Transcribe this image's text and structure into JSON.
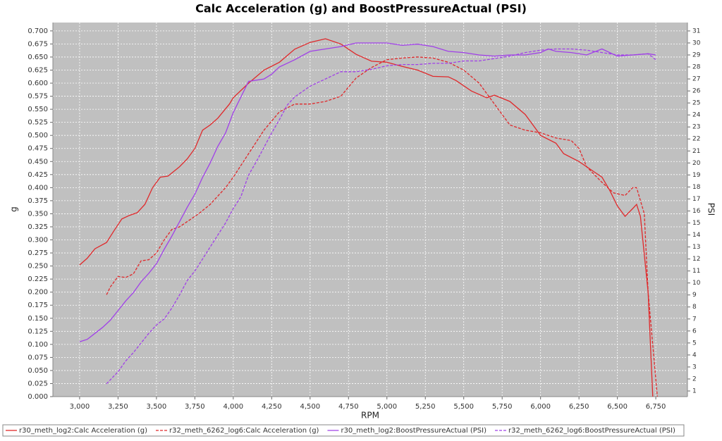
{
  "chart_data": {
    "type": "line",
    "title": "Calc Acceleration (g) and BoostPressureActual (PSI)",
    "x_label": "RPM",
    "y_label": "g",
    "y2_label": "PSI",
    "xlim": [
      2826,
      6956
    ],
    "ylim": [
      0,
      0.716
    ],
    "y2lim": [
      0.53,
      31.7
    ],
    "grid": true,
    "legend": "bottom",
    "xticks": [
      {
        "value": 3000,
        "label": "3,000"
      },
      {
        "value": 3250,
        "label": "3,250"
      },
      {
        "value": 3500,
        "label": "3,500"
      },
      {
        "value": 3750,
        "label": "3,750"
      },
      {
        "value": 4000,
        "label": "4,000"
      },
      {
        "value": 4250,
        "label": "4,250"
      },
      {
        "value": 4500,
        "label": "4,500"
      },
      {
        "value": 4750,
        "label": "4,750"
      },
      {
        "value": 5000,
        "label": "5,000"
      },
      {
        "value": 5250,
        "label": "5,250"
      },
      {
        "value": 5500,
        "label": "5,500"
      },
      {
        "value": 5750,
        "label": "5,750"
      },
      {
        "value": 6000,
        "label": "6,000"
      },
      {
        "value": 6250,
        "label": "6,250"
      },
      {
        "value": 6500,
        "label": "6,500"
      },
      {
        "value": 6750,
        "label": "6,750"
      }
    ],
    "yticks": [
      {
        "value": 0,
        "label": "0.000"
      },
      {
        "value": 0.025,
        "label": "0.025"
      },
      {
        "value": 0.05,
        "label": "0.050"
      },
      {
        "value": 0.075,
        "label": "0.075"
      },
      {
        "value": 0.1,
        "label": "0.100"
      },
      {
        "value": 0.125,
        "label": "0.125"
      },
      {
        "value": 0.15,
        "label": "0.150"
      },
      {
        "value": 0.175,
        "label": "0.175"
      },
      {
        "value": 0.2,
        "label": "0.200"
      },
      {
        "value": 0.225,
        "label": "0.225"
      },
      {
        "value": 0.25,
        "label": "0.250"
      },
      {
        "value": 0.275,
        "label": "0.275"
      },
      {
        "value": 0.3,
        "label": "0.300"
      },
      {
        "value": 0.325,
        "label": "0.325"
      },
      {
        "value": 0.35,
        "label": "0.350"
      },
      {
        "value": 0.375,
        "label": "0.375"
      },
      {
        "value": 0.4,
        "label": "0.400"
      },
      {
        "value": 0.425,
        "label": "0.425"
      },
      {
        "value": 0.45,
        "label": "0.450"
      },
      {
        "value": 0.475,
        "label": "0.475"
      },
      {
        "value": 0.5,
        "label": "0.500"
      },
      {
        "value": 0.525,
        "label": "0.525"
      },
      {
        "value": 0.55,
        "label": "0.550"
      },
      {
        "value": 0.575,
        "label": "0.575"
      },
      {
        "value": 0.6,
        "label": "0.600"
      },
      {
        "value": 0.625,
        "label": "0.625"
      },
      {
        "value": 0.65,
        "label": "0.650"
      },
      {
        "value": 0.675,
        "label": "0.675"
      },
      {
        "value": 0.7,
        "label": "0.700"
      }
    ],
    "y2ticks": [
      1,
      2,
      3,
      4,
      5,
      6,
      7,
      8,
      9,
      10,
      11,
      12,
      13,
      14,
      15,
      16,
      17,
      18,
      19,
      20,
      21,
      22,
      23,
      24,
      25,
      26,
      27,
      28,
      29,
      30,
      31
    ],
    "series": [
      {
        "name": "r30_meth_log2:Calc Acceleration (g)",
        "color": "#e0282a",
        "dashed": false,
        "x": [
          3000,
          3050,
          3100,
          3175,
          3225,
          3275,
          3325,
          3375,
          3425,
          3475,
          3525,
          3575,
          3650,
          3700,
          3750,
          3800,
          3850,
          3900,
          3975,
          4000,
          4100,
          4200,
          4300,
          4400,
          4500,
          4600,
          4700,
          4800,
          4900,
          5000,
          5100,
          5200,
          5300,
          5400,
          5450,
          5550,
          5650,
          5700,
          5800,
          5900,
          6000,
          6100,
          6150,
          6250,
          6350,
          6400,
          6450,
          6500,
          6550,
          6600,
          6625,
          6650,
          6700,
          6730
        ],
        "values": [
          0.252,
          0.265,
          0.283,
          0.295,
          0.318,
          0.34,
          0.347,
          0.352,
          0.368,
          0.4,
          0.42,
          0.422,
          0.44,
          0.455,
          0.475,
          0.51,
          0.52,
          0.533,
          0.56,
          0.572,
          0.6,
          0.625,
          0.64,
          0.665,
          0.678,
          0.685,
          0.675,
          0.655,
          0.642,
          0.64,
          0.632,
          0.625,
          0.613,
          0.612,
          0.605,
          0.585,
          0.572,
          0.577,
          0.565,
          0.54,
          0.5,
          0.485,
          0.465,
          0.45,
          0.43,
          0.42,
          0.395,
          0.365,
          0.345,
          0.36,
          0.368,
          0.345,
          0.2,
          0
        ]
      },
      {
        "name": "r32_meth_6262_log6:Calc Acceleration (g)",
        "color": "#e0282a",
        "dashed": true,
        "x": [
          3175,
          3200,
          3250,
          3300,
          3350,
          3400,
          3450,
          3500,
          3550,
          3600,
          3650,
          3700,
          3775,
          3850,
          3950,
          4000,
          4100,
          4200,
          4300,
          4400,
          4500,
          4600,
          4700,
          4800,
          4900,
          5000,
          5100,
          5200,
          5300,
          5400,
          5500,
          5600,
          5700,
          5800,
          5900,
          6000,
          6100,
          6200,
          6250,
          6300,
          6400,
          6475,
          6550,
          6600,
          6625,
          6675,
          6700,
          6760
        ],
        "values": [
          0.195,
          0.21,
          0.23,
          0.228,
          0.235,
          0.26,
          0.262,
          0.275,
          0.3,
          0.32,
          0.325,
          0.335,
          0.35,
          0.368,
          0.4,
          0.42,
          0.465,
          0.51,
          0.545,
          0.56,
          0.56,
          0.565,
          0.575,
          0.61,
          0.63,
          0.645,
          0.648,
          0.65,
          0.648,
          0.64,
          0.625,
          0.6,
          0.56,
          0.52,
          0.51,
          0.505,
          0.495,
          0.49,
          0.475,
          0.44,
          0.41,
          0.39,
          0.385,
          0.4,
          0.4,
          0.35,
          0.2,
          0
        ]
      },
      {
        "name": "r30_meth_log2:BoostPressureActual (PSI)",
        "color": "#a040e8",
        "dashed": false,
        "axis": "y2",
        "x": [
          3000,
          3050,
          3100,
          3150,
          3200,
          3250,
          3300,
          3350,
          3400,
          3450,
          3500,
          3550,
          3600,
          3650,
          3700,
          3750,
          3800,
          3850,
          3900,
          3950,
          4000,
          4050,
          4100,
          4200,
          4250,
          4300,
          4400,
          4500,
          4600,
          4700,
          4800,
          4900,
          5000,
          5100,
          5200,
          5300,
          5400,
          5500,
          5600,
          5700,
          5800,
          5900,
          6000,
          6050,
          6100,
          6200,
          6300,
          6400,
          6500,
          6600,
          6700,
          6750
        ],
        "values": [
          5.1,
          5.3,
          5.8,
          6.3,
          6.9,
          7.7,
          8.5,
          9.2,
          10.1,
          10.8,
          11.6,
          12.8,
          13.9,
          15.1,
          16.3,
          17.4,
          18.8,
          20,
          21.4,
          22.5,
          24.2,
          25.5,
          26.8,
          27,
          27.4,
          28,
          28.6,
          29.3,
          29.5,
          29.7,
          30,
          30,
          30,
          29.8,
          29.9,
          29.7,
          29.3,
          29.2,
          29,
          28.9,
          29,
          29,
          29.2,
          29.5,
          29.3,
          29.2,
          29,
          29.5,
          28.9,
          29,
          29.1,
          29
        ]
      },
      {
        "name": "r32_meth_6262_log6:BoostPressureActual (PSI)",
        "color": "#a040e8",
        "dashed": true,
        "axis": "y2",
        "x": [
          3175,
          3250,
          3300,
          3350,
          3400,
          3450,
          3500,
          3550,
          3600,
          3650,
          3700,
          3750,
          3800,
          3850,
          3900,
          3950,
          4000,
          4050,
          4100,
          4150,
          4200,
          4250,
          4300,
          4350,
          4400,
          4500,
          4600,
          4700,
          4800,
          4900,
          5000,
          5100,
          5200,
          5300,
          5400,
          5500,
          5600,
          5700,
          5800,
          5900,
          6000,
          6100,
          6200,
          6300,
          6400,
          6500,
          6600,
          6700,
          6750
        ],
        "values": [
          1.6,
          2.6,
          3.5,
          4.2,
          5,
          5.8,
          6.5,
          7,
          7.9,
          9,
          10.2,
          11,
          12,
          13,
          14,
          15,
          16.2,
          17.2,
          19,
          20.1,
          21.3,
          22.5,
          23.6,
          24.8,
          25.5,
          26.4,
          27,
          27.6,
          27.6,
          27.8,
          28.1,
          28.2,
          28.2,
          28.3,
          28.3,
          28.5,
          28.5,
          28.7,
          28.9,
          29.2,
          29.4,
          29.5,
          29.5,
          29.4,
          29.2,
          29,
          29,
          29.1,
          28.6
        ]
      }
    ]
  }
}
